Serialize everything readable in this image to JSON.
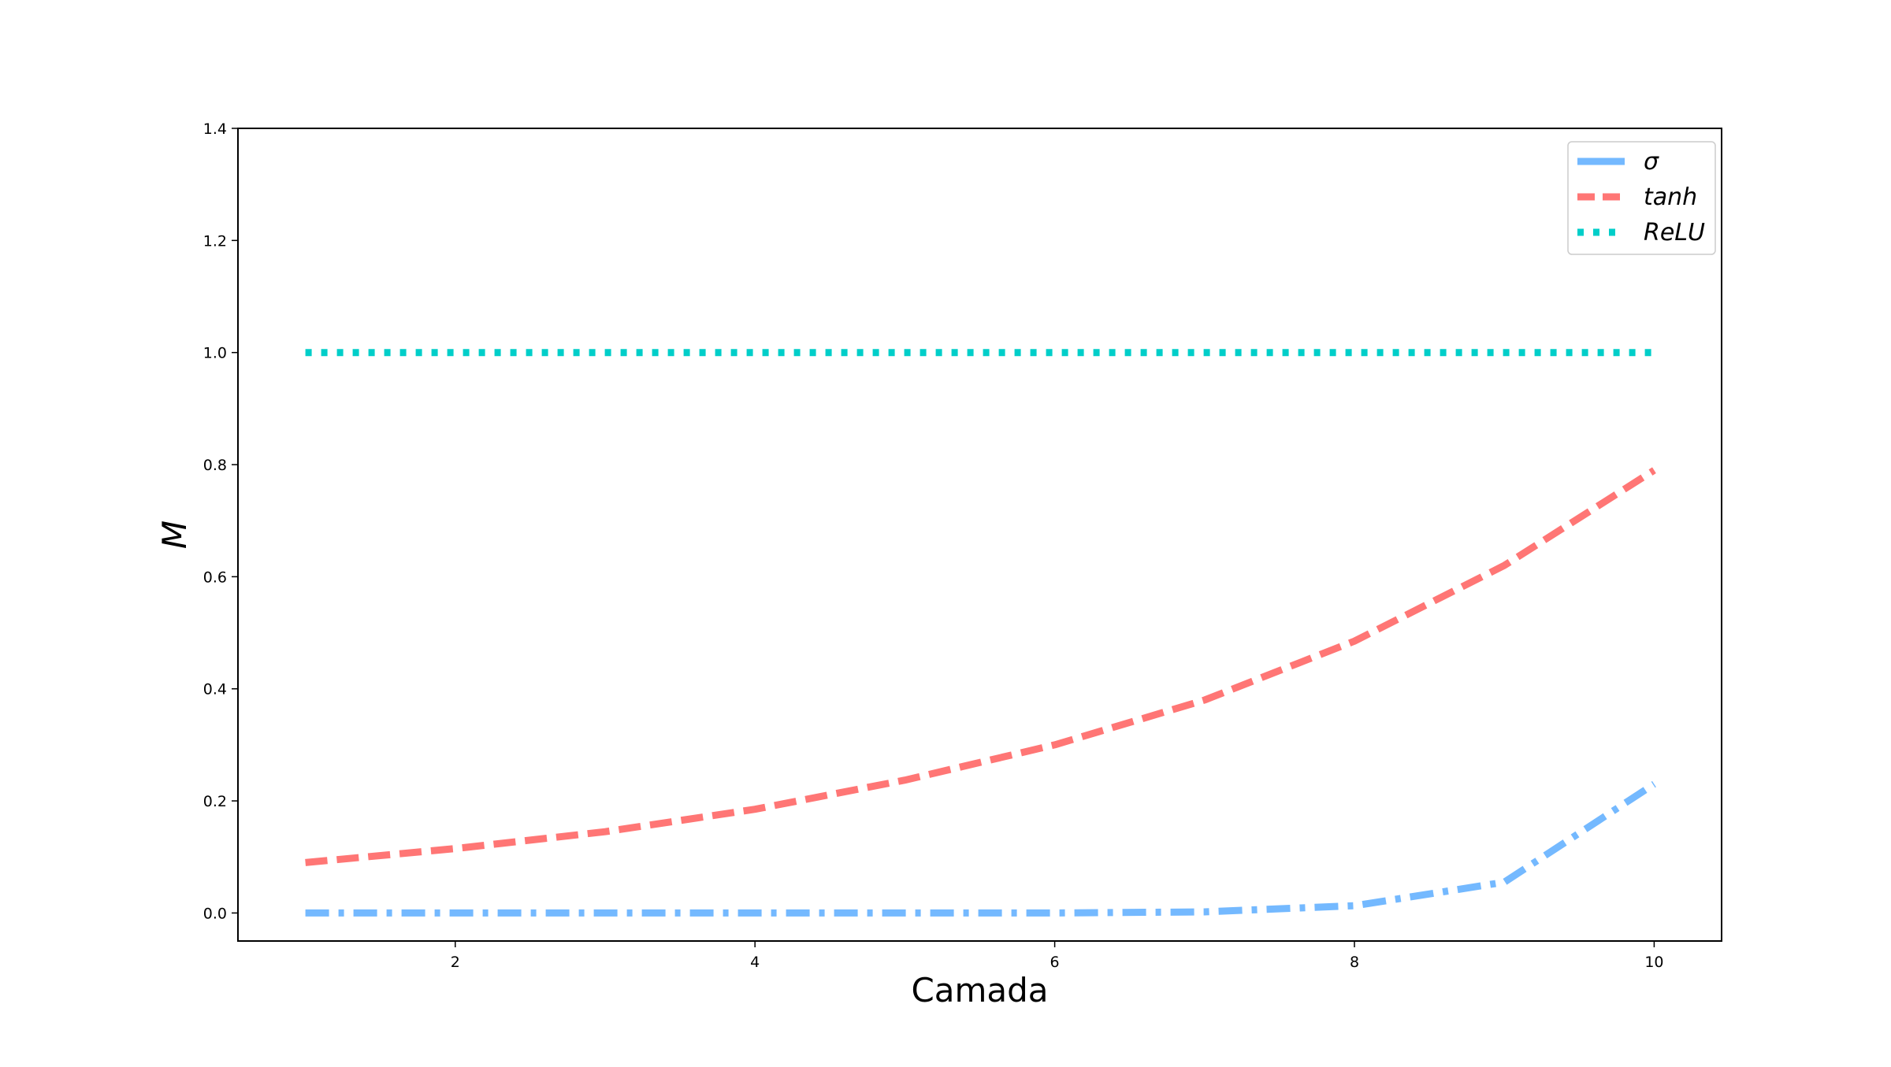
{
  "chart_data": {
    "type": "line",
    "title": "",
    "xlabel": "Camada",
    "ylabel": "M",
    "xlim": [
      0.55,
      10.45
    ],
    "ylim": [
      -0.05,
      1.4
    ],
    "xticks": [
      2,
      4,
      6,
      8,
      10
    ],
    "yticks": [
      0.0,
      0.2,
      0.4,
      0.6,
      0.8,
      1.0,
      1.2,
      1.4
    ],
    "xtick_labels": [
      "2",
      "4",
      "6",
      "8",
      "10"
    ],
    "ytick_labels": [
      "0.0",
      "0.2",
      "0.4",
      "0.6",
      "0.8",
      "1.0",
      "1.2",
      "1.4"
    ],
    "grid": false,
    "legend_position": "top-right",
    "x": [
      1,
      2,
      3,
      4,
      5,
      6,
      7,
      8,
      9,
      10
    ],
    "series": [
      {
        "name": "σ",
        "color": "#74b9ff",
        "style": "dashdot",
        "values": [
          0.0,
          0.0,
          0.0,
          0.0,
          0.0,
          0.0,
          0.002,
          0.013,
          0.055,
          0.23
        ]
      },
      {
        "name": "tanh",
        "color": "#ff7675",
        "style": "dashed",
        "values": [
          0.09,
          0.115,
          0.145,
          0.185,
          0.237,
          0.3,
          0.38,
          0.485,
          0.62,
          0.79
        ]
      },
      {
        "name": "ReLU",
        "color": "#00cec9",
        "style": "dotted",
        "values": [
          1.0,
          1.0,
          1.0,
          1.0,
          1.0,
          1.0,
          1.0,
          1.0,
          1.0,
          1.0
        ]
      }
    ]
  }
}
